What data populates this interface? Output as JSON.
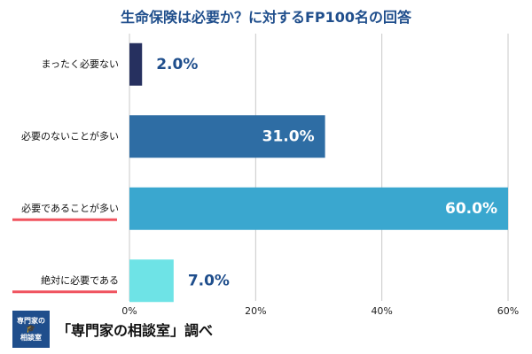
{
  "chart_data": {
    "type": "bar",
    "orientation": "horizontal",
    "title": "生命保険は必要か？に対するFP100名の回答",
    "categories": [
      "まったく必要ない",
      "必要のないことが多い",
      "必要であることが多い",
      "絶対に必要である"
    ],
    "values": [
      2.0,
      31.0,
      60.0,
      7.0
    ],
    "value_labels": [
      "2.0%",
      "31.0%",
      "60.0%",
      "7.0%"
    ],
    "colors": [
      "#26305f",
      "#2e6da4",
      "#3aa7cf",
      "#6ee3e6"
    ],
    "highlighted_categories": [
      "必要であることが多い",
      "絶対に必要である"
    ],
    "highlight_color": "#f0535f",
    "xlim": [
      0,
      60
    ],
    "xticks": [
      0,
      20,
      40,
      60
    ],
    "xtick_labels": [
      "0%",
      "20%",
      "40%",
      "60%"
    ],
    "grid": "vertical",
    "legend": "none",
    "xlabel": "",
    "ylabel": ""
  },
  "footer": {
    "logo_line1": "専門家の",
    "logo_line2": "相談室",
    "logo_icon": "graduation-cap-icon",
    "logo_color": "#1f4e8c",
    "credit": "「専門家の相談室」調べ"
  }
}
